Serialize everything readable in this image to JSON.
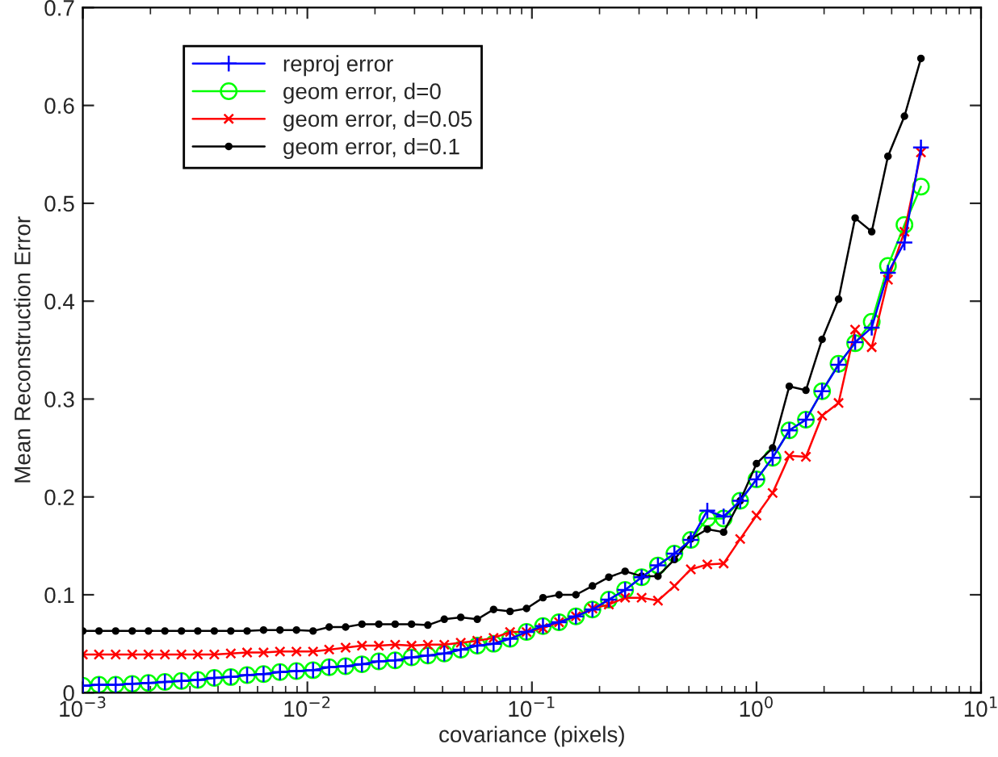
{
  "chart_data": {
    "type": "line",
    "xlabel": "covariance (pixels)",
    "ylabel": "Mean Reconstruction Error",
    "log": "x",
    "grid": false,
    "legend": "top left",
    "line_style": "solid",
    "x": [
      0.001,
      0.00118,
      0.0014,
      0.00166,
      0.00196,
      0.00232,
      0.00275,
      0.00325,
      0.00385,
      0.00456,
      0.00539,
      0.00638,
      0.00755,
      0.00894,
      0.0106,
      0.0125,
      0.0148,
      0.0175,
      0.0208,
      0.0246,
      0.0291,
      0.0344,
      0.0407,
      0.0482,
      0.0571,
      0.0675,
      0.0799,
      0.0946,
      0.112,
      0.132,
      0.157,
      0.186,
      0.22,
      0.26,
      0.308,
      0.364,
      0.431,
      0.51,
      0.604,
      0.714,
      0.846,
      1.0,
      1.18,
      1.4,
      1.66,
      1.96,
      2.32,
      2.75,
      3.26,
      3.85,
      4.56,
      5.4
    ],
    "xlim": [
      0.001,
      10
    ],
    "xticks": [
      {
        "value": 0.001,
        "label": "10$^{−3}$"
      },
      {
        "value": 0.01,
        "label": "10$^{−2}$"
      },
      {
        "value": 0.1,
        "label": "10$^{−1}$"
      },
      {
        "value": 1,
        "label": "10$^{0}$"
      },
      {
        "value": 10,
        "label": "10$^{1}$"
      }
    ],
    "ylim": [
      0,
      0.7
    ],
    "yticks": [
      0,
      0.1,
      0.2,
      0.3,
      0.4,
      0.5,
      0.6,
      0.7
    ],
    "series": [
      {
        "name": "reproj error",
        "color": "#0000ff",
        "marker": "cross",
        "values": [
          0.007,
          0.008,
          0.008,
          0.009,
          0.01,
          0.011,
          0.012,
          0.013,
          0.015,
          0.016,
          0.018,
          0.019,
          0.021,
          0.022,
          0.023,
          0.026,
          0.027,
          0.029,
          0.032,
          0.033,
          0.036,
          0.038,
          0.04,
          0.044,
          0.048,
          0.05,
          0.055,
          0.062,
          0.068,
          0.072,
          0.078,
          0.085,
          0.095,
          0.105,
          0.118,
          0.13,
          0.142,
          0.156,
          0.186,
          0.18,
          0.196,
          0.218,
          0.24,
          0.268,
          0.279,
          0.308,
          0.335,
          0.358,
          0.373,
          0.429,
          0.46,
          0.557
        ]
      },
      {
        "name": "geom error, d=0",
        "color": "#00ff00",
        "marker": "circle",
        "values": [
          0.007,
          0.008,
          0.008,
          0.009,
          0.01,
          0.011,
          0.012,
          0.013,
          0.015,
          0.016,
          0.018,
          0.019,
          0.021,
          0.022,
          0.023,
          0.026,
          0.027,
          0.029,
          0.032,
          0.033,
          0.036,
          0.038,
          0.04,
          0.044,
          0.048,
          0.05,
          0.055,
          0.062,
          0.068,
          0.072,
          0.078,
          0.085,
          0.095,
          0.105,
          0.118,
          0.13,
          0.142,
          0.156,
          0.178,
          0.178,
          0.196,
          0.218,
          0.24,
          0.268,
          0.279,
          0.308,
          0.336,
          0.357,
          0.379,
          0.436,
          0.478,
          0.517
        ]
      },
      {
        "name": "geom error, d=0.05",
        "color": "#ff0000",
        "marker": "x",
        "values": [
          0.039,
          0.039,
          0.039,
          0.039,
          0.039,
          0.039,
          0.039,
          0.039,
          0.039,
          0.04,
          0.041,
          0.041,
          0.042,
          0.042,
          0.042,
          0.044,
          0.046,
          0.048,
          0.048,
          0.049,
          0.048,
          0.049,
          0.049,
          0.051,
          0.053,
          0.056,
          0.062,
          0.062,
          0.066,
          0.072,
          0.078,
          0.086,
          0.09,
          0.097,
          0.097,
          0.094,
          0.109,
          0.126,
          0.131,
          0.132,
          0.157,
          0.181,
          0.204,
          0.242,
          0.241,
          0.283,
          0.296,
          0.371,
          0.353,
          0.422,
          0.471,
          0.552
        ]
      },
      {
        "name": "geom error, d=0.1",
        "color": "#000000",
        "marker": "point",
        "values": [
          0.063,
          0.063,
          0.063,
          0.063,
          0.063,
          0.063,
          0.063,
          0.063,
          0.063,
          0.063,
          0.063,
          0.064,
          0.064,
          0.064,
          0.063,
          0.067,
          0.067,
          0.07,
          0.07,
          0.07,
          0.07,
          0.069,
          0.075,
          0.077,
          0.075,
          0.085,
          0.083,
          0.086,
          0.097,
          0.1,
          0.1,
          0.109,
          0.118,
          0.124,
          0.119,
          0.119,
          0.136,
          0.157,
          0.167,
          0.164,
          0.196,
          0.234,
          0.25,
          0.313,
          0.309,
          0.361,
          0.402,
          0.485,
          0.471,
          0.548,
          0.589,
          0.648
        ]
      }
    ]
  }
}
